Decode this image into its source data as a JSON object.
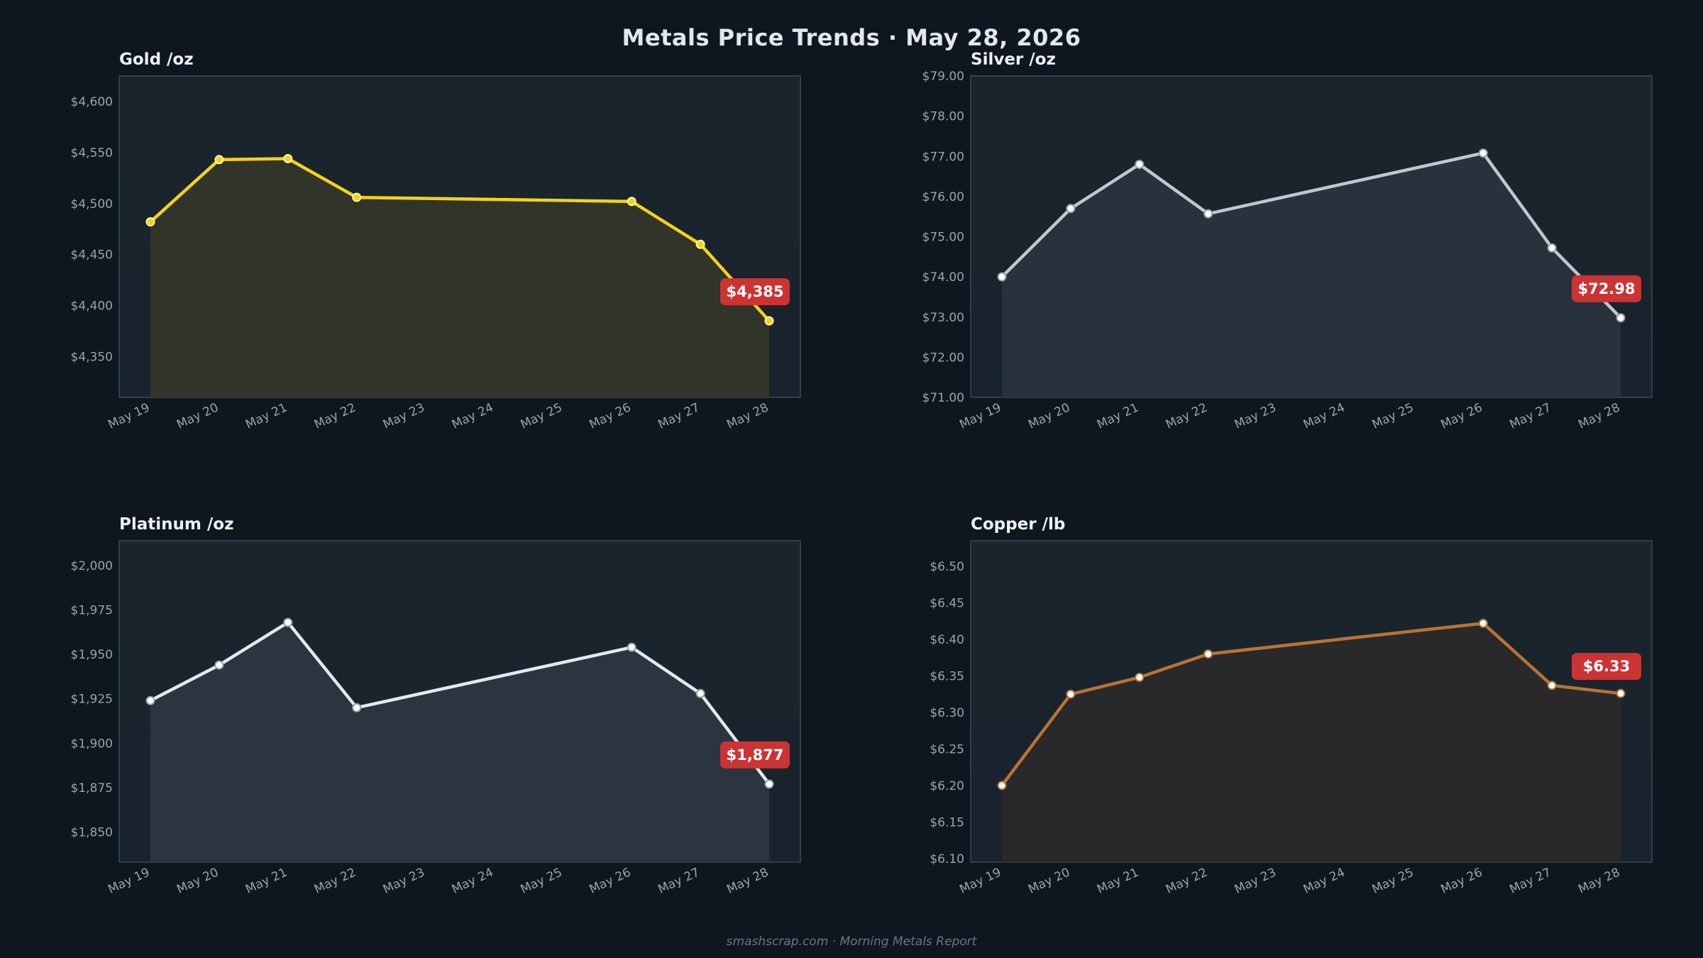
{
  "header": {
    "title": "Metals Price Trends  ·  May 28, 2026"
  },
  "footer": {
    "text": "smashscrap.com  ·  Morning Metals Report"
  },
  "chart_data": [
    {
      "id": "gold",
      "type": "line",
      "title": "Gold  /oz",
      "x": [
        "May 19",
        "May 20",
        "May 21",
        "May 22",
        "May 23",
        "May 24",
        "May 25",
        "May 26",
        "May 27",
        "May 28"
      ],
      "points": [
        [
          "May 19",
          4482
        ],
        [
          "May 20",
          4543
        ],
        [
          "May 21",
          4544
        ],
        [
          "May 22",
          4506
        ],
        [
          "May 26",
          4502
        ],
        [
          "May 27",
          4460
        ],
        [
          "May 28",
          4385
        ]
      ],
      "ylim": [
        4310,
        4625
      ],
      "yticks": [
        4350,
        4400,
        4450,
        4500,
        4550,
        4600
      ],
      "ytick_labels": [
        "$4,350",
        "$4,400",
        "$4,450",
        "$4,500",
        "$4,550",
        "$4,600"
      ],
      "last_label": "$4,385",
      "color": "#f5d21a",
      "fill": "#333628",
      "marker_fill": "#f5d21a",
      "marker_stroke": "#fff5b0"
    },
    {
      "id": "silver",
      "type": "line",
      "title": "Silver  /oz",
      "x": [
        "May 19",
        "May 20",
        "May 21",
        "May 22",
        "May 23",
        "May 24",
        "May 25",
        "May 26",
        "May 27",
        "May 28"
      ],
      "points": [
        [
          "May 19",
          74.0
        ],
        [
          "May 20",
          75.7
        ],
        [
          "May 21",
          76.8
        ],
        [
          "May 22",
          75.57
        ],
        [
          "May 26",
          77.08
        ],
        [
          "May 27",
          74.72
        ],
        [
          "May 28",
          72.98
        ]
      ],
      "ylim": [
        71.0,
        79.0
      ],
      "yticks": [
        71,
        72,
        73,
        74,
        75,
        76,
        77,
        78,
        79
      ],
      "ytick_labels": [
        "$71.00",
        "$72.00",
        "$73.00",
        "$74.00",
        "$75.00",
        "$76.00",
        "$77.00",
        "$78.00",
        "$79.00"
      ],
      "last_label": "$72.98",
      "color": "#c3c6ca",
      "fill": "#29333d",
      "marker_fill": "#ffffff",
      "marker_stroke": "#9aa0a6"
    },
    {
      "id": "platinum",
      "type": "line",
      "title": "Platinum  /oz",
      "x": [
        "May 19",
        "May 20",
        "May 21",
        "May 22",
        "May 23",
        "May 24",
        "May 25",
        "May 26",
        "May 27",
        "May 28"
      ],
      "points": [
        [
          "May 19",
          1924
        ],
        [
          "May 20",
          1944
        ],
        [
          "May 21",
          1968
        ],
        [
          "May 22",
          1920
        ],
        [
          "May 26",
          1954
        ],
        [
          "May 27",
          1928
        ],
        [
          "May 28",
          1877
        ]
      ],
      "ylim": [
        1833,
        2014
      ],
      "yticks": [
        1850,
        1875,
        1900,
        1925,
        1950,
        1975,
        2000
      ],
      "ytick_labels": [
        "$1,850",
        "$1,875",
        "$1,900",
        "$1,925",
        "$1,950",
        "$1,975",
        "$2,000"
      ],
      "last_label": "$1,877",
      "color": "#e6e8ea",
      "fill": "#2c3740",
      "marker_fill": "#ffffff",
      "marker_stroke": "#9aa0a6"
    },
    {
      "id": "copper",
      "type": "line",
      "title": "Copper  /lb",
      "x": [
        "May 19",
        "May 20",
        "May 21",
        "May 22",
        "May 23",
        "May 24",
        "May 25",
        "May 26",
        "May 27",
        "May 28"
      ],
      "points": [
        [
          "May 19",
          6.2
        ],
        [
          "May 20",
          6.325
        ],
        [
          "May 21",
          6.348
        ],
        [
          "May 22",
          6.38
        ],
        [
          "May 26",
          6.422
        ],
        [
          "May 27",
          6.337
        ],
        [
          "May 28",
          6.326
        ]
      ],
      "ylim": [
        6.095,
        6.535
      ],
      "yticks": [
        6.1,
        6.15,
        6.2,
        6.25,
        6.3,
        6.35,
        6.4,
        6.45,
        6.5
      ],
      "ytick_labels": [
        "$6.10",
        "$6.15",
        "$6.20",
        "$6.25",
        "$6.30",
        "$6.35",
        "$6.40",
        "$6.45",
        "$6.50"
      ],
      "last_label": "$6.33",
      "color": "#b87333",
      "fill": "#2a2a2c",
      "marker_fill": "#ffffff",
      "marker_stroke": "#b87333"
    }
  ]
}
